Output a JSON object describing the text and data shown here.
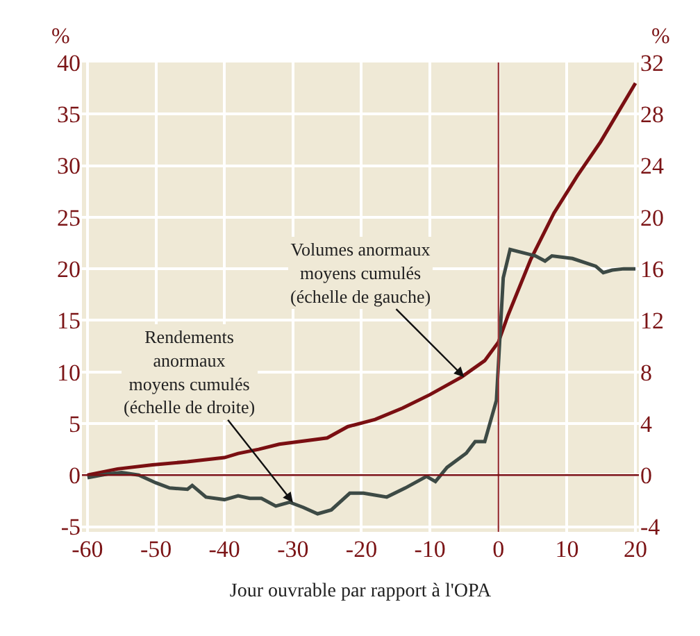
{
  "chart_data": {
    "type": "line",
    "xlabel": "Jour ouvrable par rapport à l'OPA",
    "ylabel": "%",
    "y2label": "%",
    "xlim": [
      -60.8,
      20.5
    ],
    "xticks": [
      -60,
      -50,
      -40,
      -30,
      -20,
      -10,
      0,
      10,
      20
    ],
    "ylim": [
      -5.5,
      40
    ],
    "yticks": [
      -5,
      0,
      5,
      10,
      15,
      20,
      25,
      30,
      35,
      40
    ],
    "y2lim": [
      -4.4,
      32
    ],
    "y2ticks": [
      -4,
      0,
      4,
      8,
      12,
      16,
      20,
      24,
      28,
      32
    ],
    "grid": true,
    "marker": "none",
    "line_style": "solid",
    "series": [
      {
        "color": "#7a0f12",
        "x": [
          -60,
          -55.6,
          -50.5,
          -45.4,
          -40,
          -38,
          -35,
          -32,
          -25,
          -22,
          -18,
          -14,
          -10,
          -5.4,
          -2,
          0,
          1.4,
          4.7,
          8.1,
          11.5,
          14.9,
          20
        ],
        "values": [
          0,
          0.6,
          1.0,
          1.3,
          1.7,
          2.1,
          2.5,
          3.0,
          3.6,
          4.7,
          5.4,
          6.5,
          7.8,
          9.5,
          11.1,
          12.9,
          15.5,
          20.9,
          25.4,
          29,
          32.3,
          38
        ]
      },
      {
        "color": "#3d4a45",
        "axis": "y2",
        "x": [
          -60,
          -57,
          -55,
          -52.5,
          -50,
          -48,
          -45.4,
          -44.7,
          -42.7,
          -40,
          -38,
          -36.3,
          -34.6,
          -32.5,
          -30.5,
          -28.5,
          -26.4,
          -24.4,
          -21.7,
          -19.7,
          -16.3,
          -13.6,
          -10.5,
          -9.2,
          -7.5,
          -4.7,
          -3.4,
          -2,
          -0.3,
          0.7,
          1.7,
          5.4,
          6.8,
          7.8,
          10.8,
          14.2,
          15.3,
          16.6,
          18.3,
          20
        ],
        "values": [
          -0.2,
          0.1,
          0.2,
          0,
          -0.6,
          -1.0,
          -1.1,
          -0.8,
          -1.7,
          -1.9,
          -1.6,
          -1.8,
          -1.8,
          -2.4,
          -2.1,
          -2.5,
          -3.0,
          -2.7,
          -1.4,
          -1.4,
          -1.7,
          -1.0,
          -0.1,
          -0.5,
          0.6,
          1.7,
          2.6,
          2.6,
          5.8,
          15.3,
          17.5,
          17.0,
          16.6,
          17.0,
          16.8,
          16.2,
          15.7,
          15.9,
          16.0,
          16.0
        ]
      }
    ],
    "ref_lines": [
      {
        "axis": "x",
        "value": 0,
        "color": "#9b3a3a"
      },
      {
        "axis": "y",
        "value": 0,
        "color": "#7a0f12"
      }
    ],
    "annotations": [
      {
        "text": "Volumes anormaux\nmoyens cumulés\n(échelle de gauche)",
        "x": -5,
        "y": 9.5
      },
      {
        "text": "Rendements\nanormaux\nmoyens cumulés\n(échelle de droite)",
        "x": -30,
        "y": -2.65
      }
    ]
  }
}
